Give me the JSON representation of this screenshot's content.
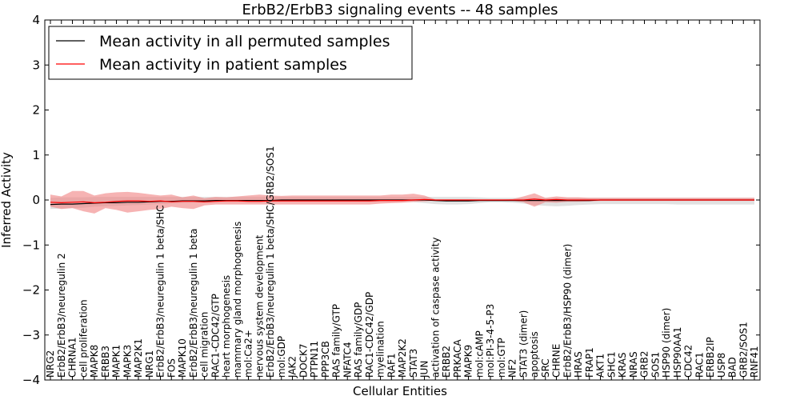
{
  "chart_data": {
    "type": "line",
    "title": "ErbB2/ErbB3 signaling events -- 48 samples",
    "xlabel": "Cellular Entities",
    "ylabel": "Inferred Activity",
    "ylim": [
      -4,
      4
    ],
    "yticks": [
      -4,
      -3,
      -2,
      -1,
      0,
      1,
      2,
      3,
      4
    ],
    "ytick_labels": [
      "−4",
      "−3",
      "−2",
      "−1",
      "0",
      "1",
      "2",
      "3",
      "4"
    ],
    "grid": false,
    "legend_position": "top-left",
    "categories": [
      "NRG2",
      "ErbB2/ErbB3/neuregulin 2",
      "CHRNA1",
      "cell proliferation",
      "MAPK8",
      "ERBB3",
      "MAPK1",
      "MAPK3",
      "MAP2K1",
      "NRG1",
      "ErbB2/ErbB3/neuregulin 1 beta/SHC",
      "FOS",
      "MAPK10",
      "ErbB2/ErbB3/neuregulin 1 beta",
      "cell migration",
      "RAC1-CDC42/GTP",
      "heart morphogenesis",
      "mammary gland morphogenesis",
      "mol:Ca2+",
      "nervous system development",
      "ErbB2/ErbB3/neuregulin 1 beta/SHC/GRB2/SOS1",
      "mol:GDP",
      "JAK2",
      "DOCK7",
      "PTPN11",
      "PPP3CB",
      "RAS family/GTP",
      "NFATC4",
      "RAS family/GDP",
      "RAC1-CDC42/GDP",
      "myelination",
      "RAF1",
      "MAP2K2",
      "STAT3",
      "JUN",
      "activation of caspase activity",
      "ERBB2",
      "PRKACA",
      "MAPK9",
      "mol:cAMP",
      "mol:PI-3-4-5-P3",
      "mol:GTP",
      "NF2",
      "STAT3 (dimer)",
      "apoptosis",
      "SRC",
      "CHRNE",
      "ErbB2/ErbB3/HSP90 (dimer)",
      "HRAS",
      "FRAP1",
      "AKT1",
      "SHC1",
      "KRAS",
      "NRAS",
      "GRB2",
      "SOS1",
      "HSP90 (dimer)",
      "HSP90AA1",
      "CDC42",
      "RAC1",
      "ERBB2IP",
      "USP8",
      "BAD",
      "GRB2/SOS1",
      "RNF41"
    ],
    "series": [
      {
        "name": "Mean activity in all permuted samples",
        "color": "#000000",
        "band_color": "#c8c8c8",
        "values": [
          -0.1,
          -0.09,
          -0.09,
          -0.08,
          -0.07,
          -0.06,
          -0.06,
          -0.05,
          -0.05,
          -0.04,
          -0.03,
          -0.03,
          -0.02,
          -0.02,
          -0.02,
          -0.01,
          -0.01,
          -0.01,
          -0.01,
          -0.01,
          -0.01,
          0,
          0,
          0,
          0,
          0,
          0,
          0,
          0,
          0,
          0,
          0,
          0,
          0,
          0,
          -0.01,
          -0.02,
          -0.02,
          -0.02,
          -0.01,
          -0.01,
          -0.01,
          -0.01,
          -0.01,
          -0.01,
          -0.01,
          -0.01,
          -0.01,
          -0.01,
          -0.01,
          0,
          0,
          0,
          0,
          0,
          0,
          0,
          0,
          0,
          0,
          0,
          0,
          0,
          0,
          0
        ],
        "lower": [
          -0.2,
          -0.19,
          -0.18,
          -0.17,
          -0.15,
          -0.14,
          -0.13,
          -0.12,
          -0.11,
          -0.1,
          -0.09,
          -0.08,
          -0.07,
          -0.06,
          -0.06,
          -0.05,
          -0.05,
          -0.05,
          -0.05,
          -0.05,
          -0.05,
          -0.04,
          -0.04,
          -0.04,
          -0.04,
          -0.04,
          -0.04,
          -0.04,
          -0.04,
          -0.04,
          -0.04,
          -0.04,
          -0.04,
          -0.05,
          -0.07,
          -0.09,
          -0.1,
          -0.1,
          -0.09,
          -0.07,
          -0.05,
          -0.05,
          -0.06,
          -0.08,
          -0.11,
          -0.13,
          -0.14,
          -0.13,
          -0.11,
          -0.1,
          -0.09,
          -0.09,
          -0.09,
          -0.09,
          -0.09,
          -0.09,
          -0.09,
          -0.1,
          -0.1,
          -0.1,
          -0.1,
          -0.1,
          -0.1,
          -0.1,
          -0.1
        ],
        "upper": [
          0.05,
          0.06,
          0.06,
          0.06,
          0.07,
          0.07,
          0.07,
          0.07,
          0.07,
          0.07,
          0.07,
          0.07,
          0.07,
          0.07,
          0.07,
          0.07,
          0.07,
          0.07,
          0.07,
          0.07,
          0.07,
          0.07,
          0.07,
          0.07,
          0.07,
          0.07,
          0.07,
          0.07,
          0.07,
          0.07,
          0.07,
          0.07,
          0.07,
          0.07,
          0.07,
          0.07,
          0.07,
          0.07,
          0.07,
          0.06,
          0.05,
          0.05,
          0.05,
          0.05,
          0.05,
          0.05,
          0.05,
          0.05,
          0.05,
          0.05,
          0.05,
          0.05,
          0.05,
          0.05,
          0.05,
          0.05,
          0.05,
          0.05,
          0.05,
          0.05,
          0.05,
          0.05,
          0.05,
          0.05,
          0.05
        ]
      },
      {
        "name": "Mean activity in patient samples",
        "color": "#ff0000",
        "band_color": "#f08080",
        "values": [
          -0.05,
          -0.06,
          -0.05,
          -0.04,
          -0.06,
          -0.05,
          -0.03,
          -0.02,
          -0.02,
          -0.03,
          -0.02,
          -0.04,
          -0.03,
          -0.03,
          -0.04,
          -0.03,
          -0.02,
          -0.02,
          -0.03,
          -0.03,
          -0.02,
          -0.02,
          -0.02,
          -0.02,
          -0.02,
          -0.02,
          -0.02,
          -0.02,
          -0.02,
          -0.02,
          -0.01,
          -0.01,
          -0.01,
          0,
          0.01,
          0,
          0,
          0,
          0,
          0,
          0,
          0,
          0,
          0,
          0.02,
          0,
          0.01,
          0,
          0,
          0,
          0,
          0,
          0,
          0,
          0,
          0,
          0,
          0,
          0,
          0,
          0,
          0,
          0,
          0,
          0
        ],
        "lower": [
          -0.15,
          -0.2,
          -0.18,
          -0.25,
          -0.3,
          -0.18,
          -0.22,
          -0.28,
          -0.25,
          -0.22,
          -0.2,
          -0.15,
          -0.18,
          -0.2,
          -0.12,
          -0.1,
          -0.1,
          -0.1,
          -0.1,
          -0.1,
          -0.1,
          -0.1,
          -0.1,
          -0.1,
          -0.1,
          -0.1,
          -0.1,
          -0.1,
          -0.1,
          -0.1,
          -0.08,
          -0.07,
          -0.06,
          -0.04,
          -0.03,
          -0.01,
          -0.01,
          -0.01,
          -0.01,
          -0.01,
          -0.01,
          -0.01,
          -0.02,
          -0.05,
          -0.15,
          -0.05,
          -0.06,
          -0.04,
          -0.04,
          -0.03,
          -0.02,
          -0.02,
          -0.02,
          -0.02,
          -0.02,
          -0.02,
          -0.02,
          -0.02,
          -0.02,
          -0.02,
          -0.02,
          -0.02,
          -0.02,
          -0.02,
          -0.02
        ],
        "upper": [
          0.12,
          0.08,
          0.2,
          0.2,
          0.1,
          0.15,
          0.17,
          0.18,
          0.16,
          0.13,
          0.1,
          0.12,
          0.06,
          0.1,
          0.04,
          0.07,
          0.06,
          0.08,
          0.1,
          0.12,
          0.1,
          0.09,
          0.1,
          0.1,
          0.1,
          0.1,
          0.1,
          0.1,
          0.1,
          0.1,
          0.1,
          0.12,
          0.12,
          0.14,
          0.1,
          0.01,
          0.01,
          0.01,
          0.01,
          0.01,
          0.01,
          0.01,
          0.02,
          0.08,
          0.15,
          0.05,
          0.08,
          0.06,
          0.06,
          0.05,
          0.05,
          0.05,
          0.05,
          0.05,
          0.05,
          0.05,
          0.05,
          0.05,
          0.05,
          0.05,
          0.05,
          0.05,
          0.05,
          0.05,
          0.05
        ]
      }
    ]
  }
}
